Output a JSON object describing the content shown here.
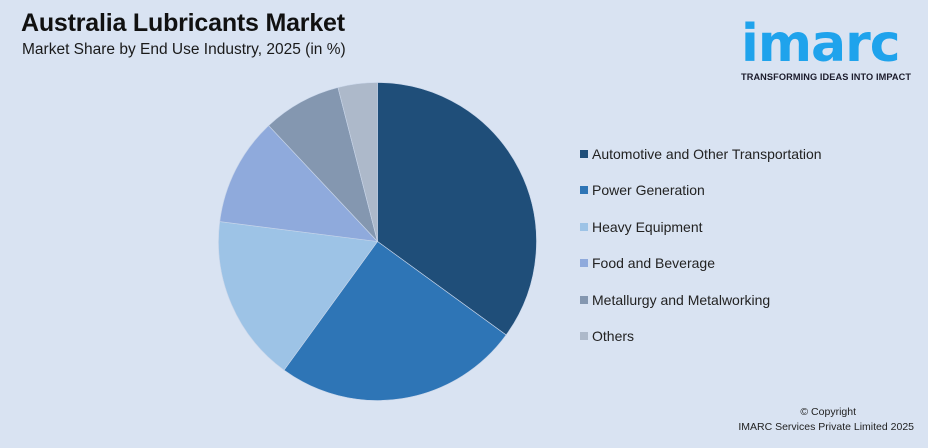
{
  "header": {
    "title": "Australia Lubricants Market",
    "subtitle": "Market Share by End Use Industry, 2025 (in %)"
  },
  "logo": {
    "wordmark": "imarc",
    "tagline": "TRANSFORMING IDEAS INTO IMPACT",
    "color": "#1fa3ec"
  },
  "footer": {
    "copyright": "© Copyright",
    "company": "IMARC Services Private Limited 2025"
  },
  "chart_data": {
    "type": "pie",
    "title": "Australia Lubricants Market",
    "subtitle": "Market Share by End Use Industry, 2025 (in %)",
    "categories": [
      "Automotive and Other Transportation",
      "Power Generation",
      "Heavy Equipment",
      "Food and Beverage",
      "Metallurgy and Metalworking",
      "Others"
    ],
    "values": [
      35,
      25,
      17,
      11,
      8,
      4
    ],
    "colors": [
      "#1f4e79",
      "#2e75b6",
      "#9dc3e6",
      "#8faadc",
      "#8497b0",
      "#adb9ca"
    ],
    "start_angle_deg": 0,
    "direction": "clockwise",
    "legend_position": "right",
    "data_labels": false
  }
}
